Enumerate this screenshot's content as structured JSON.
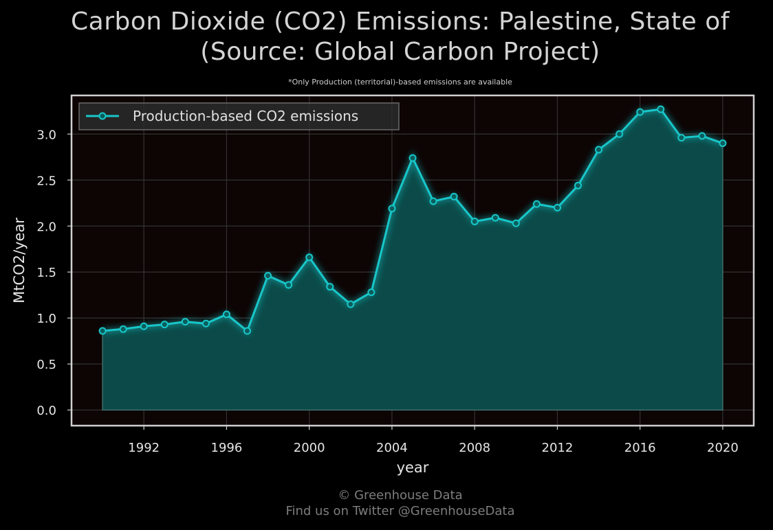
{
  "header": {
    "title_line1": "Carbon Dioxide (CO2) Emissions: Palestine, State of",
    "title_line2": "(Source: Global Carbon Project)",
    "subtitle": "*Only Production (territorial)-based emissions are available"
  },
  "footer": {
    "line1": "© Greenhouse Data",
    "line2": "Find us on Twitter @GreenhouseData"
  },
  "colors": {
    "background": "#000000",
    "plot_background": "#0d0404",
    "line": "#17c7c9",
    "fill": "#0b4a48",
    "grid": "#333333",
    "frame": "#d0d0d0"
  },
  "chart_data": {
    "type": "area",
    "xlabel": "year",
    "ylabel": "MtCO2/year",
    "xlim": [
      1988.5,
      2021.5
    ],
    "ylim": [
      -0.17,
      3.42
    ],
    "xticks": [
      1992,
      1996,
      2000,
      2004,
      2008,
      2012,
      2016,
      2020
    ],
    "yticks": [
      0.0,
      0.5,
      1.0,
      1.5,
      2.0,
      2.5,
      3.0
    ],
    "ytick_labels": [
      "0.0",
      "0.5",
      "1.0",
      "1.5",
      "2.0",
      "2.5",
      "3.0"
    ],
    "grid": true,
    "legend_position": "top-left",
    "x": [
      1990,
      1991,
      1992,
      1993,
      1994,
      1995,
      1996,
      1997,
      1998,
      1999,
      2000,
      2001,
      2002,
      2003,
      2004,
      2005,
      2006,
      2007,
      2008,
      2009,
      2010,
      2011,
      2012,
      2013,
      2014,
      2015,
      2016,
      2017,
      2018,
      2019,
      2020
    ],
    "series": [
      {
        "name": "Production-based CO2 emissions",
        "values": [
          0.86,
          0.88,
          0.91,
          0.93,
          0.96,
          0.94,
          1.04,
          0.86,
          1.46,
          1.36,
          1.66,
          1.34,
          1.15,
          1.28,
          2.19,
          2.74,
          2.27,
          2.32,
          2.05,
          2.09,
          2.03,
          2.24,
          2.2,
          2.44,
          2.83,
          3.0,
          3.24,
          3.27,
          2.96,
          2.98,
          2.9
        ]
      }
    ]
  }
}
